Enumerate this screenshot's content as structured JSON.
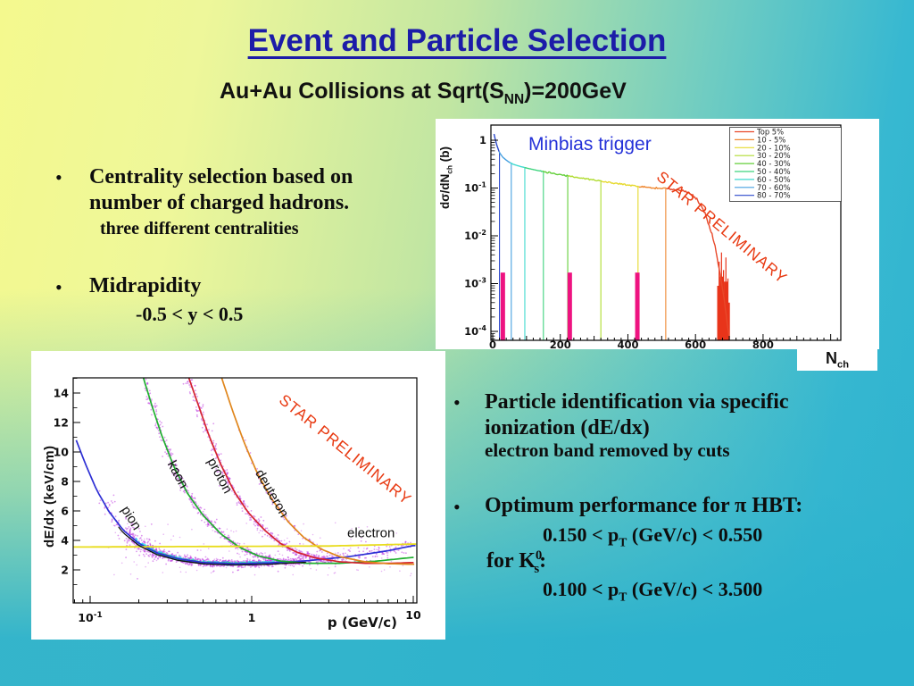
{
  "slide": {
    "title": "Event and Particle Selection",
    "subtitle": {
      "pre": "Au+Au Collisions at Sqrt(S",
      "sub": "NN",
      "post": ")=200GeV"
    },
    "bullet_glyph": "•",
    "left_bullets": {
      "b1_line1": "Centrality selection based on",
      "b1_line2": "number of charged hadrons.",
      "b1_sub": "three different centralities",
      "b2": "Midrapidity",
      "b2_sub": "-0.5 < y < 0.5"
    },
    "right_bullets": {
      "b1_line1": "Particle identification via specific",
      "b1_line2": "ionization (dE/dx)",
      "b1_sub": "electron band removed by cuts",
      "b2_pre": "Optimum performance for ",
      "b2_pi": "π",
      "b2_post": " HBT:",
      "range1_pre": "0.150 < p",
      "range1_sub": "T",
      "range1_post": " (GeV/c) < 0.550",
      "k_pre": "for K",
      "k_sup": "0",
      "k_sub": "s",
      "k_post": ":",
      "range2_pre": "0.100 < p",
      "range2_sub": "T",
      "range2_post": " (GeV/c) < 3.500"
    }
  },
  "colors": {
    "title": "#1c1ca8",
    "minbias_text": "#2431d8",
    "watermark": "#e83a12",
    "pink_marker": "#ee1380",
    "red_histogram": "#e8341a",
    "bg_top_left": "#f4f98e",
    "bg_bottom_right": "#2eb3cf"
  },
  "chart_data": [
    {
      "type": "line",
      "annotation": "Minbias trigger",
      "watermark": "STAR PRELIMINARY",
      "xlabel": {
        "main": "N",
        "sub": "ch"
      },
      "ylabel": {
        "pre": "dσ/dN",
        "sub": "ch",
        "post": " (b)"
      },
      "x_ticks": [
        0,
        200,
        400,
        600,
        800
      ],
      "y_tick_exponents": [
        0,
        -1,
        -2,
        -3,
        -4
      ],
      "xlim": [
        0,
        1030
      ],
      "ylog_lim": [
        -4.25,
        0.45
      ],
      "legend_position": "top-right",
      "grid": false,
      "legend": [
        {
          "label": "Top 5%",
          "color": "#e8482a"
        },
        {
          "label": "10 - 5%",
          "color": "#ef8832"
        },
        {
          "label": "20 - 10%",
          "color": "#e6d92e"
        },
        {
          "label": "30 - 20%",
          "color": "#b0dc30"
        },
        {
          "label": "40 - 30%",
          "color": "#63cf3a"
        },
        {
          "label": "50 - 40%",
          "color": "#3ed47e"
        },
        {
          "label": "60 - 50%",
          "color": "#3fd9cf"
        },
        {
          "label": "70 - 60%",
          "color": "#46a0e0"
        },
        {
          "label": "80 - 70%",
          "color": "#2b49cc"
        }
      ],
      "curve_points": [
        [
          4,
          1.35
        ],
        [
          8,
          1.0
        ],
        [
          14,
          0.72
        ],
        [
          20,
          0.55
        ],
        [
          30,
          0.44
        ],
        [
          45,
          0.36
        ],
        [
          60,
          0.315
        ],
        [
          80,
          0.285
        ],
        [
          100,
          0.262
        ],
        [
          130,
          0.235
        ],
        [
          160,
          0.213
        ],
        [
          200,
          0.19
        ],
        [
          240,
          0.17
        ],
        [
          280,
          0.153
        ],
        [
          320,
          0.139
        ],
        [
          360,
          0.127
        ],
        [
          400,
          0.116
        ],
        [
          440,
          0.107
        ],
        [
          480,
          0.1
        ],
        [
          510,
          0.096
        ],
        [
          540,
          0.092
        ],
        [
          565,
          0.087
        ],
        [
          585,
          0.078
        ],
        [
          600,
          0.063
        ],
        [
          615,
          0.045
        ],
        [
          630,
          0.027
        ],
        [
          645,
          0.013
        ],
        [
          658,
          0.006
        ],
        [
          668,
          0.0025
        ],
        [
          678,
          0.001
        ],
        [
          687,
          0.00038
        ],
        [
          694,
          0.00015
        ],
        [
          700,
          7e-05
        ]
      ],
      "segment_colors": [
        [
          0,
          "#2b49cc"
        ],
        [
          20,
          "#46a0e0"
        ],
        [
          55,
          "#3fd9cf"
        ],
        [
          95,
          "#3ed47e"
        ],
        [
          150,
          "#63cf3a"
        ],
        [
          225,
          "#b0dc30"
        ],
        [
          325,
          "#e6d92e"
        ],
        [
          435,
          "#ef8832"
        ],
        [
          515,
          "#e8482a"
        ]
      ],
      "dividers": [
        {
          "x": 20,
          "color": "#2b49cc"
        },
        {
          "x": 55,
          "color": "#46a0e0"
        },
        {
          "x": 95,
          "color": "#3fd9cf"
        },
        {
          "x": 150,
          "color": "#3ed47e"
        },
        {
          "x": 222,
          "color": "#63cf3a"
        },
        {
          "x": 320,
          "color": "#b0dc30"
        },
        {
          "x": 430,
          "color": "#e6d92e"
        },
        {
          "x": 512,
          "color": "#ef8832"
        }
      ],
      "pink_markers": {
        "x": [
          30,
          228,
          428
        ],
        "top": 0.0017
      },
      "red_bars": [
        [
          670,
          0.0009
        ],
        [
          677,
          0.0014
        ],
        [
          683,
          0.0006
        ],
        [
          690,
          0.0011
        ],
        [
          696,
          0.0004
        ]
      ]
    },
    {
      "type": "scatter",
      "watermark": "STAR PRELIMINARY",
      "xlabel": "p  (GeV/c)",
      "ylabel": "dE/dx  (keV/cm)",
      "x_tick_exponents": [
        -1,
        0,
        1
      ],
      "y_ticks": [
        2,
        4,
        6,
        8,
        10,
        12,
        14
      ],
      "xlog_lim": [
        -1.1,
        1.02
      ],
      "ylim": [
        -0.3,
        15.3
      ],
      "grid": false,
      "scatter_color": "#bb2fe0",
      "core_colors": [
        "#2ad8ee",
        "#35e052"
      ],
      "fit_color": "#101010",
      "bands": [
        {
          "name": "pion",
          "label": "pion",
          "color": "#2d2fd4",
          "label_p": 0.155,
          "label_y": 6.1,
          "label_rot": 58,
          "points": [
            [
              0.082,
              10.8
            ],
            [
              0.095,
              9.0
            ],
            [
              0.11,
              7.4
            ],
            [
              0.13,
              6.0
            ],
            [
              0.16,
              4.7
            ],
            [
              0.2,
              3.8
            ],
            [
              0.26,
              3.15
            ],
            [
              0.35,
              2.75
            ],
            [
              0.5,
              2.5
            ],
            [
              0.8,
              2.42
            ],
            [
              1.3,
              2.48
            ],
            [
              2.2,
              2.62
            ],
            [
              4,
              2.9
            ],
            [
              7,
              3.3
            ],
            [
              10,
              3.65
            ]
          ]
        },
        {
          "name": "kaon",
          "label": "kaon",
          "color": "#1faf2f",
          "label_p": 0.3,
          "label_y": 9.2,
          "label_rot": 62,
          "points": [
            [
              0.21,
              15.3
            ],
            [
              0.24,
              13.2
            ],
            [
              0.28,
              11.0
            ],
            [
              0.33,
              9.0
            ],
            [
              0.4,
              7.2
            ],
            [
              0.5,
              5.7
            ],
            [
              0.65,
              4.4
            ],
            [
              0.85,
              3.5
            ],
            [
              1.1,
              2.95
            ],
            [
              1.5,
              2.6
            ],
            [
              2.2,
              2.45
            ],
            [
              3.5,
              2.45
            ],
            [
              6,
              2.6
            ],
            [
              10,
              2.85
            ]
          ]
        },
        {
          "name": "proton",
          "label": "proton",
          "color": "#d42330",
          "label_p": 0.53,
          "label_y": 9.4,
          "label_rot": 62,
          "points": [
            [
              0.4,
              15.3
            ],
            [
              0.46,
              13.4
            ],
            [
              0.54,
              11.2
            ],
            [
              0.64,
              9.2
            ],
            [
              0.78,
              7.3
            ],
            [
              0.95,
              5.9
            ],
            [
              1.2,
              4.7
            ],
            [
              1.5,
              3.8
            ],
            [
              1.9,
              3.2
            ],
            [
              2.5,
              2.8
            ],
            [
              3.5,
              2.55
            ],
            [
              5,
              2.45
            ],
            [
              7.5,
              2.45
            ],
            [
              10,
              2.5
            ]
          ]
        },
        {
          "name": "deuteron",
          "label": "deuteron",
          "color": "#e0861c",
          "label_p": 1.05,
          "label_y": 8.6,
          "label_rot": 60,
          "points": [
            [
              0.64,
              15.3
            ],
            [
              0.75,
              13.0
            ],
            [
              0.9,
              10.6
            ],
            [
              1.1,
              8.4
            ],
            [
              1.35,
              6.7
            ],
            [
              1.7,
              5.2
            ],
            [
              2.1,
              4.2
            ],
            [
              2.7,
              3.4
            ],
            [
              3.5,
              2.9
            ],
            [
              5,
              2.55
            ],
            [
              7,
              2.42
            ],
            [
              10,
              2.38
            ]
          ]
        },
        {
          "name": "electron",
          "label": "electron",
          "color": "#e8dc1c",
          "label_p": 3.9,
          "label_y": 4.2,
          "label_rot": 0,
          "points": [
            [
              0.079,
              3.55
            ],
            [
              1,
              3.6
            ],
            [
              3,
              3.62
            ],
            [
              10,
              3.75
            ]
          ]
        }
      ]
    }
  ]
}
